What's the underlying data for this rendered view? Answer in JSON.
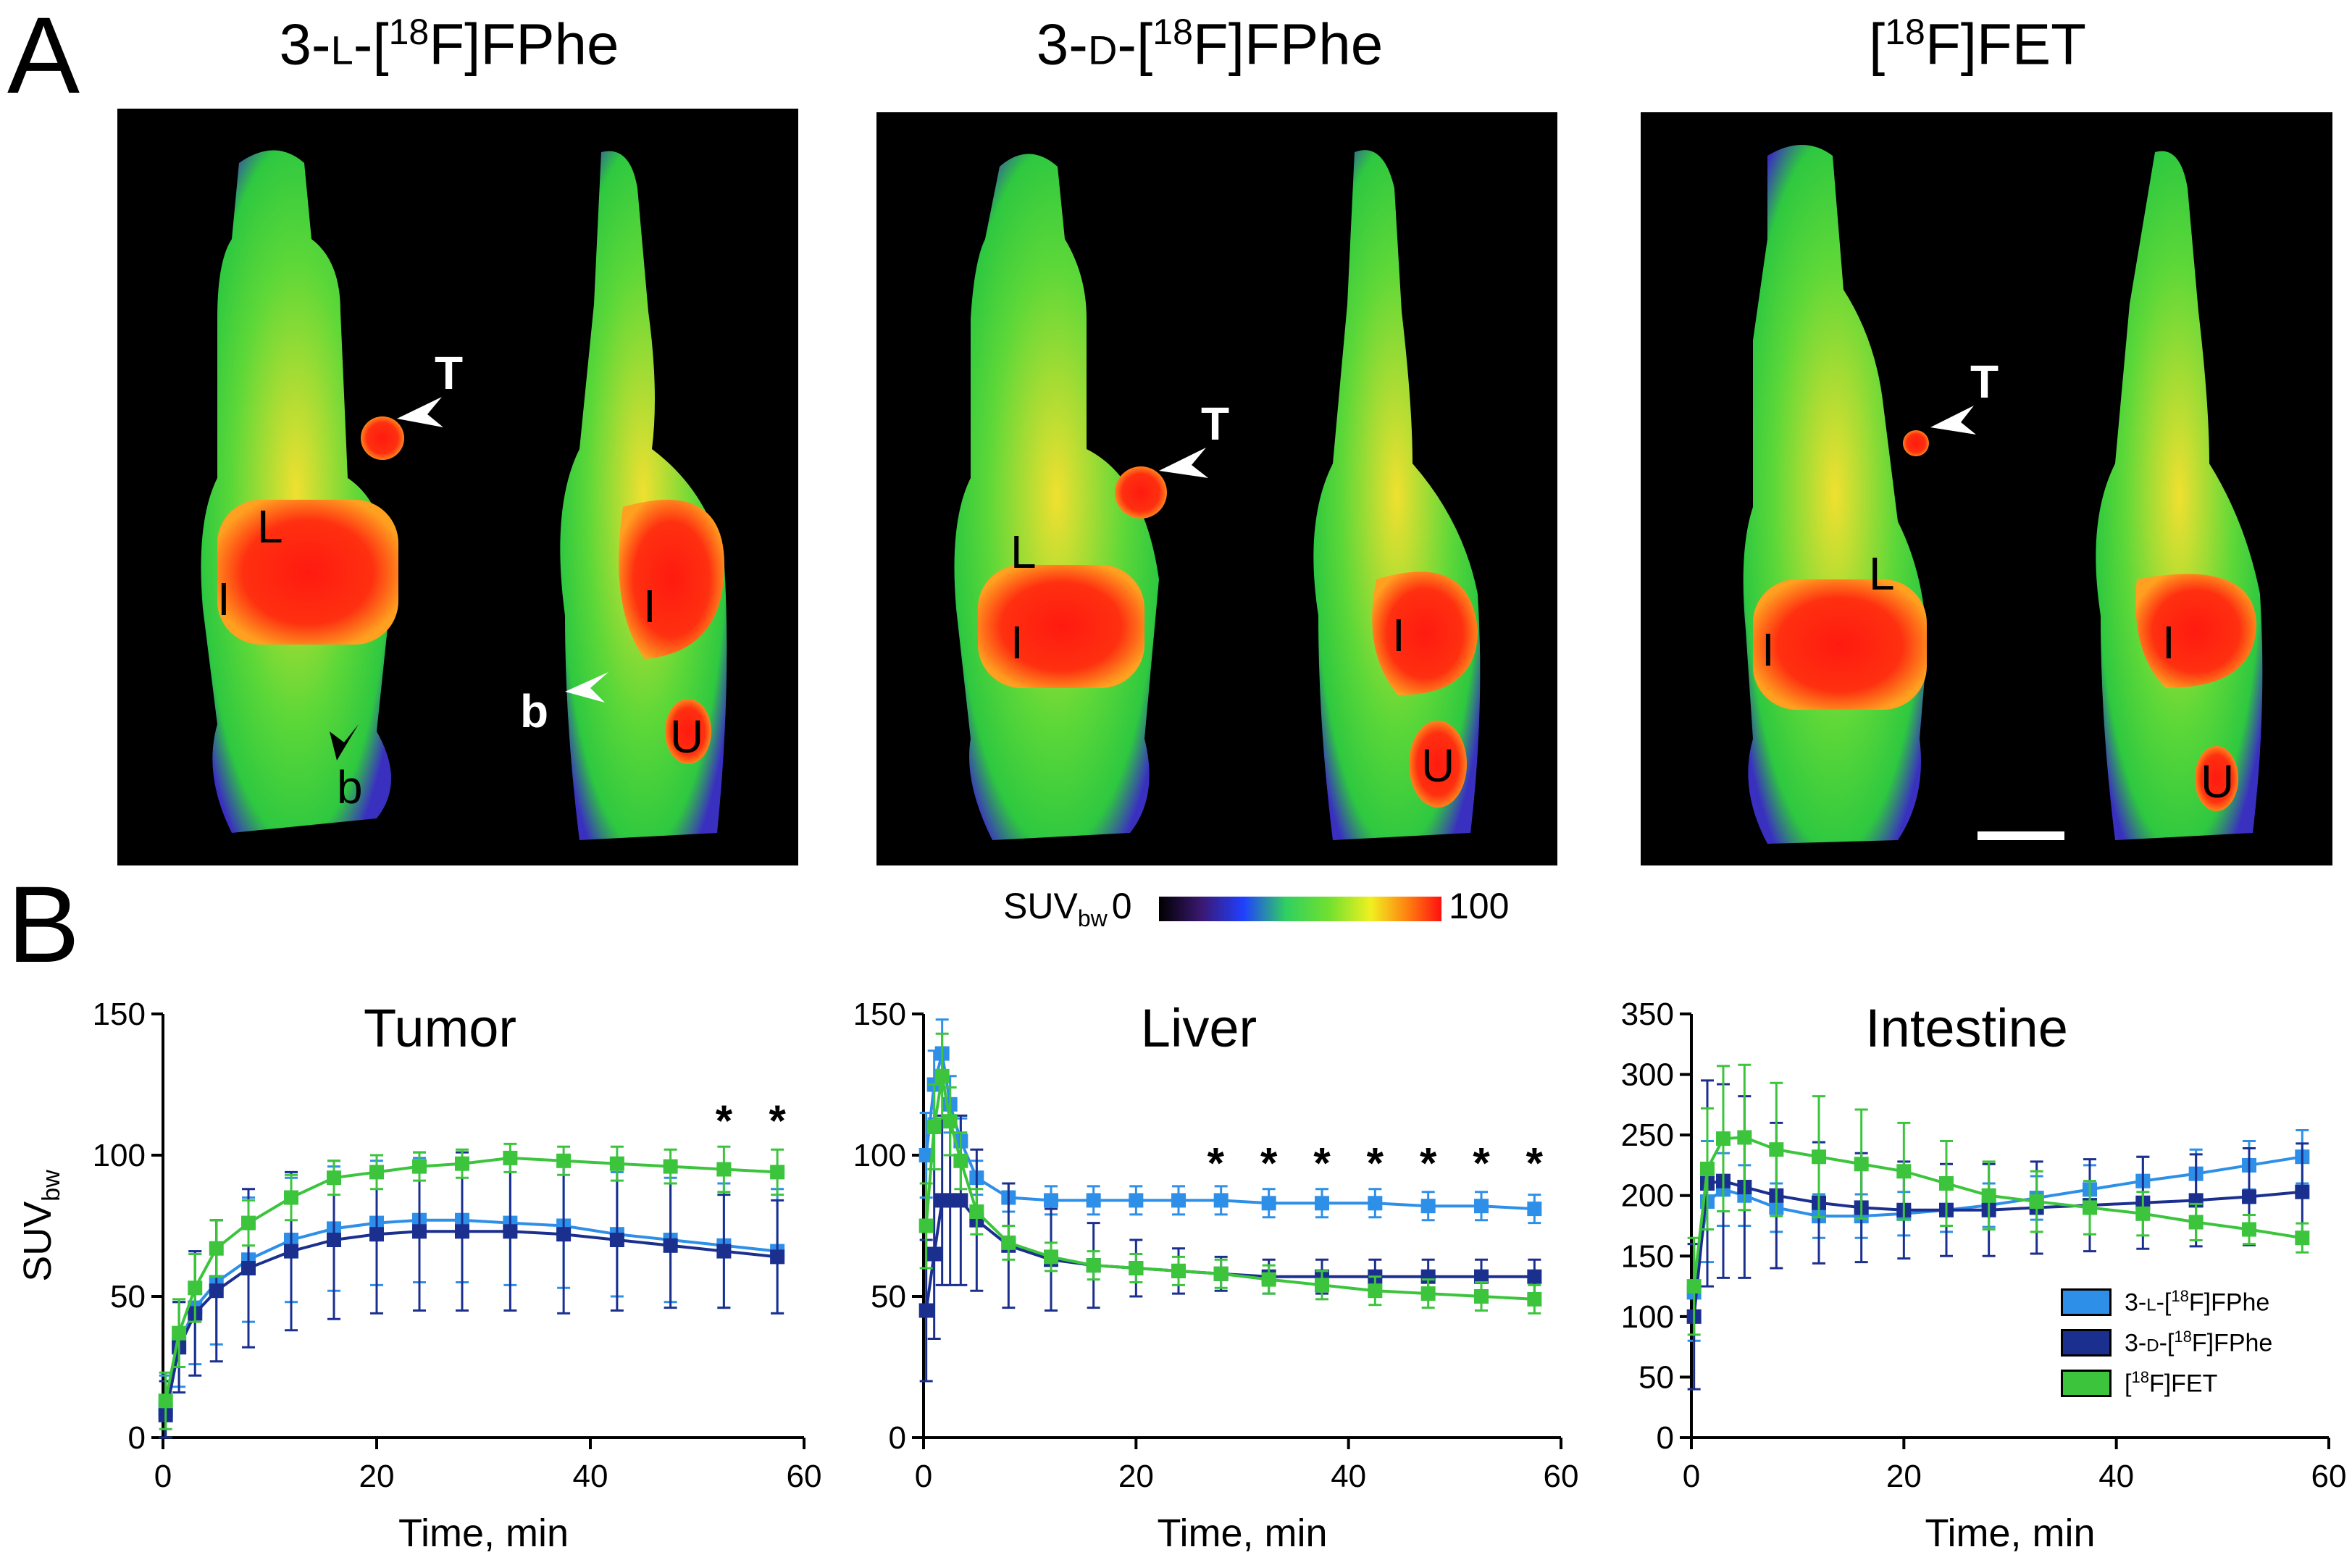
{
  "panel_a": {
    "letter": "A",
    "tracers": [
      {
        "title": "3-L-[18F]FPhe",
        "parts": [
          "3-",
          "L",
          "-[",
          "18",
          "F]FPhe"
        ]
      },
      {
        "title": "3-D-[18F]FPhe",
        "parts": [
          "3-",
          "D",
          "-[",
          "18",
          "F]FPhe"
        ]
      },
      {
        "title": "[18F]FET",
        "parts": [
          "[",
          "18",
          "F]FET"
        ]
      }
    ],
    "organ_labels": {
      "tumor": "T",
      "liver": "L",
      "intestine": "I",
      "bladder": "U",
      "bone": "b"
    },
    "colorbar": {
      "label": "SUV",
      "label_sub": "bw",
      "min": "0",
      "max": "100"
    }
  },
  "panel_b": {
    "letter": "B"
  },
  "legend": [
    {
      "name": "3-L-[18F]FPhe",
      "parts": [
        "3-",
        "L",
        "-[",
        "18",
        "F]FPhe"
      ],
      "color": "#2e8fe8"
    },
    {
      "name": "3-D-[18F]FPhe",
      "parts": [
        "3-",
        "D",
        "-[",
        "18",
        "F]FPhe"
      ],
      "color": "#1b2f8f"
    },
    {
      "name": "[18F]FET",
      "parts": [
        "[",
        "18",
        "F]FET"
      ],
      "color": "#3cc43c"
    }
  ],
  "chart_data": [
    {
      "type": "line",
      "title": "Tumor",
      "xlabel": "Time, min",
      "ylabel": "SUV",
      "ylabel_sub": "bw",
      "xlim": [
        0,
        60
      ],
      "ylim": [
        0,
        150
      ],
      "xticks": [
        0,
        20,
        40,
        60
      ],
      "yticks": [
        0,
        50,
        100,
        150
      ],
      "significance": [
        {
          "x": 52.5,
          "y": 112,
          "label": "*"
        },
        {
          "x": 57.5,
          "y": 112,
          "label": "*"
        }
      ],
      "series": [
        {
          "name": "3-L-[18F]FPhe",
          "color": "#2e8fe8",
          "x": [
            0.25,
            1.5,
            3,
            5,
            8,
            12,
            16,
            20,
            24,
            28,
            32.5,
            37.5,
            42.5,
            47.5,
            52.5,
            57.5
          ],
          "y": [
            10,
            33,
            46,
            55,
            63,
            70,
            74,
            76,
            77,
            77,
            76,
            75,
            72,
            70,
            68,
            66
          ],
          "err": [
            12,
            15,
            20,
            22,
            22,
            22,
            22,
            22,
            22,
            22,
            22,
            22,
            22,
            22,
            22,
            22
          ]
        },
        {
          "name": "3-D-[18F]FPhe",
          "color": "#1b2f8f",
          "x": [
            0.25,
            1.5,
            3,
            5,
            8,
            12,
            16,
            20,
            24,
            28,
            32.5,
            37.5,
            42.5,
            47.5,
            52.5,
            57.5
          ],
          "y": [
            8,
            32,
            44,
            52,
            60,
            66,
            70,
            72,
            73,
            73,
            73,
            72,
            70,
            68,
            66,
            64
          ],
          "err": [
            12,
            16,
            22,
            25,
            28,
            28,
            28,
            28,
            28,
            28,
            28,
            28,
            25,
            22,
            20,
            20
          ]
        },
        {
          "name": "[18F]FET",
          "color": "#3cc43c",
          "x": [
            0.25,
            1.5,
            3,
            5,
            8,
            12,
            16,
            20,
            24,
            28,
            32.5,
            37.5,
            42.5,
            47.5,
            52.5,
            57.5
          ],
          "y": [
            13,
            37,
            53,
            67,
            76,
            85,
            92,
            94,
            96,
            97,
            99,
            98,
            97,
            96,
            95,
            94
          ],
          "err": [
            10,
            12,
            12,
            10,
            8,
            8,
            6,
            6,
            5,
            5,
            5,
            5,
            6,
            6,
            8,
            8
          ]
        }
      ]
    },
    {
      "type": "line",
      "title": "Liver",
      "xlabel": "Time, min",
      "ylabel": "",
      "xlim": [
        0,
        60
      ],
      "ylim": [
        0,
        150
      ],
      "xticks": [
        0,
        20,
        40,
        60
      ],
      "yticks": [
        0,
        50,
        100,
        150
      ],
      "significance": [
        {
          "x": 27.5,
          "y": 97,
          "label": "*"
        },
        {
          "x": 32.5,
          "y": 97,
          "label": "*"
        },
        {
          "x": 37.5,
          "y": 97,
          "label": "*"
        },
        {
          "x": 42.5,
          "y": 97,
          "label": "*"
        },
        {
          "x": 47.5,
          "y": 97,
          "label": "*"
        },
        {
          "x": 52.5,
          "y": 97,
          "label": "*"
        },
        {
          "x": 57.5,
          "y": 97,
          "label": "*"
        }
      ],
      "series": [
        {
          "name": "3-L-[18F]FPhe",
          "color": "#2e8fe8",
          "x": [
            0.25,
            1,
            1.75,
            2.5,
            3.5,
            5,
            8,
            12,
            16,
            20,
            24,
            28,
            32.5,
            37.5,
            42.5,
            47.5,
            52.5,
            57.5
          ],
          "y": [
            100,
            125,
            136,
            118,
            105,
            92,
            85,
            84,
            84,
            84,
            84,
            84,
            83,
            83,
            83,
            82,
            82,
            81
          ],
          "err": [
            15,
            12,
            12,
            10,
            8,
            6,
            5,
            5,
            5,
            5,
            5,
            5,
            5,
            5,
            5,
            5,
            5,
            5
          ]
        },
        {
          "name": "3-D-[18F]FPhe",
          "color": "#1b2f8f",
          "x": [
            0.25,
            1,
            1.75,
            2.5,
            3.5,
            5,
            8,
            12,
            16,
            20,
            24,
            28,
            32.5,
            37.5,
            42.5,
            47.5,
            52.5,
            57.5
          ],
          "y": [
            45,
            65,
            84,
            84,
            84,
            77,
            68,
            63,
            61,
            60,
            59,
            58,
            57,
            57,
            57,
            57,
            57,
            57
          ],
          "err": [
            25,
            30,
            30,
            30,
            30,
            25,
            22,
            18,
            15,
            10,
            8,
            6,
            6,
            6,
            6,
            6,
            6,
            6
          ]
        },
        {
          "name": "[18F]FET",
          "color": "#3cc43c",
          "x": [
            0.25,
            1,
            1.75,
            2.5,
            3.5,
            5,
            8,
            12,
            16,
            20,
            24,
            28,
            32.5,
            37.5,
            42.5,
            47.5,
            52.5,
            57.5
          ],
          "y": [
            75,
            110,
            128,
            112,
            98,
            80,
            69,
            64,
            61,
            60,
            59,
            58,
            56,
            54,
            52,
            51,
            50,
            49
          ],
          "err": [
            15,
            15,
            15,
            12,
            10,
            8,
            6,
            5,
            5,
            5,
            5,
            5,
            5,
            5,
            5,
            5,
            5,
            5
          ]
        }
      ]
    },
    {
      "type": "line",
      "title": "Intestine",
      "xlabel": "Time, min",
      "ylabel": "",
      "xlim": [
        0,
        60
      ],
      "ylim": [
        0,
        350
      ],
      "xticks": [
        0,
        20,
        40,
        60
      ],
      "yticks": [
        0,
        50,
        100,
        150,
        200,
        250,
        300,
        350
      ],
      "significance": [],
      "series": [
        {
          "name": "3-L-[18F]FPhe",
          "color": "#2e8fe8",
          "x": [
            0.25,
            1.5,
            3,
            5,
            8,
            12,
            16,
            20,
            24,
            28,
            32.5,
            37.5,
            42.5,
            47.5,
            52.5,
            57.5
          ],
          "y": [
            120,
            195,
            205,
            200,
            190,
            183,
            183,
            185,
            188,
            192,
            198,
            205,
            212,
            218,
            225,
            232
          ],
          "err": [
            40,
            50,
            30,
            25,
            20,
            18,
            18,
            18,
            18,
            18,
            18,
            20,
            20,
            20,
            20,
            22
          ]
        },
        {
          "name": "3-D-[18F]FPhe",
          "color": "#1b2f8f",
          "x": [
            0.25,
            1.5,
            3,
            5,
            8,
            12,
            16,
            20,
            24,
            28,
            32.5,
            37.5,
            42.5,
            47.5,
            52.5,
            57.5
          ],
          "y": [
            100,
            210,
            212,
            207,
            200,
            194,
            190,
            188,
            188,
            188,
            190,
            192,
            194,
            196,
            199,
            203
          ],
          "err": [
            60,
            85,
            80,
            75,
            60,
            50,
            45,
            40,
            38,
            38,
            38,
            38,
            38,
            38,
            40,
            40
          ]
        },
        {
          "name": "[18F]FET",
          "color": "#3cc43c",
          "x": [
            0.25,
            1.5,
            3,
            5,
            8,
            12,
            16,
            20,
            24,
            28,
            32.5,
            37.5,
            42.5,
            47.5,
            52.5,
            57.5
          ],
          "y": [
            125,
            222,
            247,
            248,
            238,
            232,
            226,
            220,
            210,
            200,
            195,
            190,
            185,
            178,
            172,
            165
          ],
          "err": [
            40,
            50,
            60,
            60,
            55,
            50,
            45,
            40,
            35,
            28,
            25,
            22,
            18,
            15,
            12,
            12
          ]
        }
      ]
    }
  ]
}
